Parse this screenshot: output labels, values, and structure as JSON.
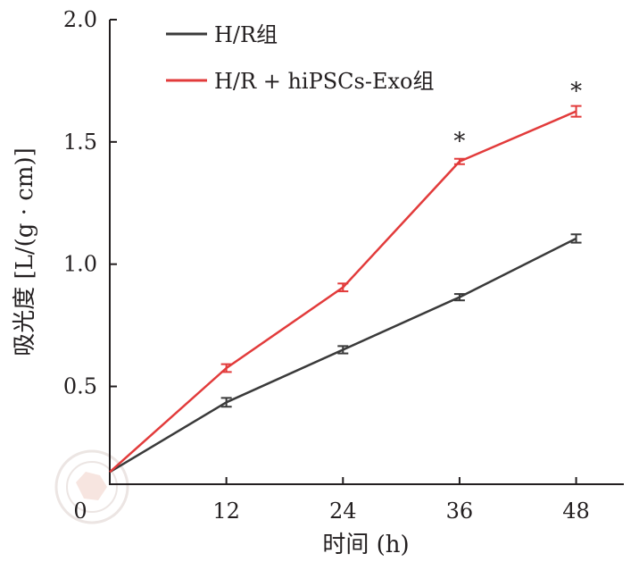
{
  "chart_data": {
    "type": "line",
    "x": [
      0,
      12,
      24,
      36,
      48
    ],
    "xticks": [
      "0",
      "12",
      "24",
      "36",
      "48"
    ],
    "yticks": [
      "0.5",
      "1.0",
      "1.5",
      "2.0"
    ],
    "xlabel": "时间 (h)",
    "ylabel": "吸光度 [L/(g · cm)]",
    "xlim": [
      0,
      53
    ],
    "ylim": [
      0.1,
      2.0
    ],
    "grid": false,
    "legend": "top-left",
    "series": [
      {
        "name": "H/R组",
        "color": "#3a3a3a",
        "values": [
          0.15,
          0.435,
          0.65,
          0.865,
          1.105
        ],
        "errors": [
          0,
          0.018,
          0.015,
          0.013,
          0.017
        ]
      },
      {
        "name": "H/R + hiPSCs-Exo组",
        "color": "#e23b3b",
        "values": [
          0.15,
          0.575,
          0.905,
          1.42,
          1.625
        ],
        "errors": [
          0,
          0.016,
          0.016,
          0.011,
          0.022
        ]
      }
    ],
    "annotations": [
      {
        "x": 36,
        "y": 1.42,
        "text": "*"
      },
      {
        "x": 48,
        "y": 1.625,
        "text": "*"
      }
    ]
  }
}
